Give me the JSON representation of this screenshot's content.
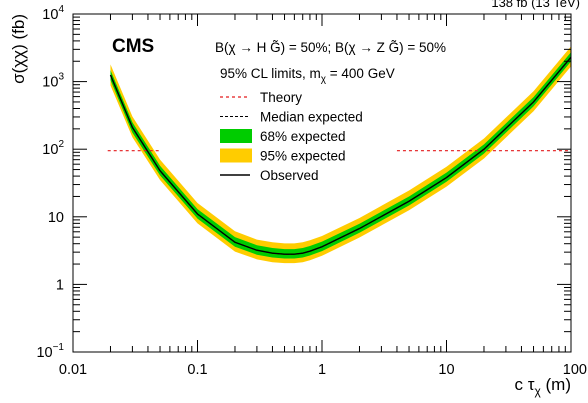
{
  "header_partial": "138 fb  (13 TeV)",
  "chart_data": {
    "type": "line",
    "experiment": "CMS",
    "model_text": "B(χ → H G̃) = 50%; B(χ → Z G̃) = 50%",
    "cl_text": "95% CL limits, m",
    "cl_sub": "χ",
    "cl_value": " = 400 GeV",
    "xlabel": "c τ",
    "xlabel_sub": "χ",
    "xlabel_unit": " (m)",
    "ylabel": "σ(χχ) (fb)",
    "xscale": "log",
    "yscale": "log",
    "xlim": [
      0.01,
      100
    ],
    "ylim": [
      0.1,
      10000
    ],
    "x_ticks": [
      {
        "value": 0.01,
        "label": "0.01"
      },
      {
        "value": 0.1,
        "label": "0.1"
      },
      {
        "value": 1,
        "label": "1"
      },
      {
        "value": 10,
        "label": "10"
      },
      {
        "value": 100,
        "label": "100"
      }
    ],
    "y_ticks": [
      {
        "value": 0.1,
        "base": "10",
        "exp": "−1"
      },
      {
        "value": 1,
        "base": "1",
        "exp": ""
      },
      {
        "value": 10,
        "base": "10",
        "exp": ""
      },
      {
        "value": 100,
        "base": "10",
        "exp": "2"
      },
      {
        "value": 1000,
        "base": "10",
        "exp": "3"
      },
      {
        "value": 10000,
        "base": "10",
        "exp": "4"
      }
    ],
    "legend": [
      {
        "label": "Theory",
        "style": "red-dashed"
      },
      {
        "label": "Median expected",
        "style": "black-dashed"
      },
      {
        "label": "68% expected",
        "style": "green-box"
      },
      {
        "label": "95% expected",
        "style": "yellow-box"
      },
      {
        "label": "Observed",
        "style": "black-solid"
      }
    ],
    "theory": {
      "value": 95,
      "gap": [
        0.05,
        4.0
      ]
    },
    "x": [
      0.02,
      0.03,
      0.05,
      0.1,
      0.2,
      0.3,
      0.4,
      0.5,
      0.6,
      0.7,
      0.8,
      1.0,
      2.0,
      5.0,
      10,
      20,
      50,
      100
    ],
    "observed": [
      1250,
      210,
      48,
      11,
      4.2,
      3.2,
      2.9,
      2.8,
      2.8,
      2.9,
      3.1,
      3.6,
      6.7,
      17,
      38,
      100,
      500,
      2300
    ],
    "expected_median": [
      1250,
      210,
      48,
      11,
      4.2,
      3.2,
      2.9,
      2.8,
      2.8,
      2.9,
      3.1,
      3.6,
      6.7,
      17,
      38,
      100,
      500,
      2300
    ],
    "band68_low": [
      1050,
      175,
      41,
      9.4,
      3.6,
      2.75,
      2.5,
      2.42,
      2.42,
      2.5,
      2.68,
      3.1,
      5.8,
      14.7,
      33,
      86,
      430,
      1980
    ],
    "band68_high": [
      1480,
      250,
      57,
      13,
      5.0,
      3.8,
      3.45,
      3.33,
      3.33,
      3.45,
      3.7,
      4.3,
      7.9,
      20,
      45,
      118,
      590,
      2720
    ],
    "band95_low": [
      880,
      150,
      35,
      8.0,
      3.05,
      2.35,
      2.13,
      2.06,
      2.06,
      2.13,
      2.28,
      2.65,
      4.95,
      12.5,
      28,
      73,
      365,
      1680
    ],
    "band95_high": [
      1800,
      305,
      70,
      16,
      6.1,
      4.6,
      4.2,
      4.05,
      4.05,
      4.2,
      4.5,
      5.2,
      9.6,
      24.5,
      55,
      144,
      720,
      3320
    ],
    "colors": {
      "band95": "#ffcc00",
      "band68": "#00cc00",
      "theory": "#e41a1c",
      "observed": "#000000",
      "median": "#000000"
    }
  }
}
